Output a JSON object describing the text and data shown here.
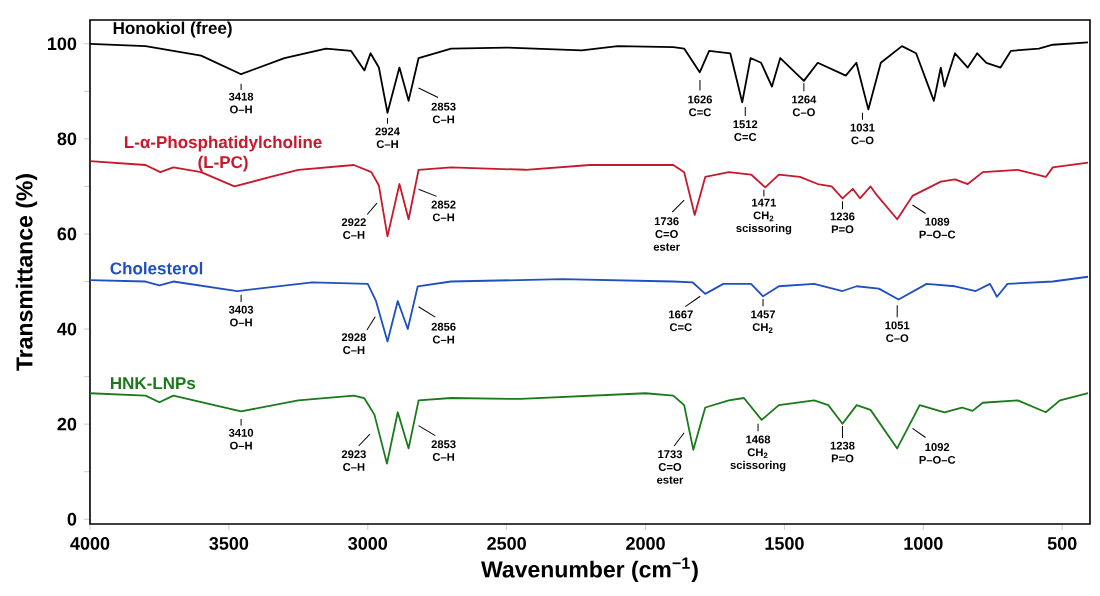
{
  "chart_data": {
    "type": "line",
    "xlabel": "Wavenumber (cm$^{−1}$)",
    "ylabel": "Transmittance (%)",
    "xlim": [
      4000,
      400
    ],
    "ylim": [
      -1,
      105
    ],
    "xticks": [
      4000,
      3500,
      3000,
      2500,
      2000,
      1500,
      1000,
      500
    ],
    "yticks": [
      0,
      {
        "value": 10,
        "label": null
      },
      20,
      {
        "value": 30,
        "label": null
      },
      40,
      {
        "value": 50,
        "label": null
      },
      60,
      {
        "value": 70,
        "label": null
      },
      80,
      {
        "value": 90,
        "label": null
      },
      100
    ],
    "grid": false,
    "legend": false,
    "marker": "none",
    "line_style": "solid",
    "series": [
      {
        "name": "Honokiol (free)",
        "color": "#000000",
        "x": [
          4000,
          3800,
          3600,
          3456,
          3300,
          3150,
          3060,
          3012,
          2990,
          2960,
          2929,
          2886,
          2853,
          2817,
          2700,
          2500,
          2230,
          2100,
          1900,
          1861,
          1805,
          1771,
          1695,
          1652,
          1622,
          1584,
          1545,
          1515,
          1430,
          1380,
          1279,
          1241,
          1198,
          1153,
          1077,
          1026,
          962,
          937,
          924,
          886,
          840,
          806,
          773,
          722,
          685,
          584,
          534,
          407
        ],
        "values": [
          100,
          99.5,
          97.5,
          93.6,
          97,
          99,
          98.5,
          94.4,
          98,
          95,
          85.5,
          95,
          88,
          97,
          99,
          99.2,
          98.6,
          99.5,
          99.3,
          99,
          94,
          98.5,
          98,
          87.7,
          97,
          96,
          91,
          97,
          92.2,
          96,
          93.3,
          96,
          86.2,
          96,
          99.5,
          98,
          88,
          95,
          91,
          98,
          95,
          98,
          96,
          95,
          98.5,
          99,
          99.8,
          100.3
        ]
      },
      {
        "name": "L-α-Phosphatidylcholine (L-PC)",
        "color": "#c8182c",
        "x": [
          4000,
          3800,
          3747,
          3700,
          3600,
          3480,
          3350,
          3250,
          3050,
          2987,
          2960,
          2929,
          2886,
          2853,
          2817,
          2700,
          2432,
          2200,
          1900,
          1861,
          1823,
          1785,
          1700,
          1620,
          1569,
          1520,
          1444,
          1380,
          1330,
          1291,
          1254,
          1228,
          1190,
          1165,
          1094,
          1039,
          937,
          886,
          840,
          786,
          660,
          559,
          534,
          407
        ],
        "values": [
          75.3,
          74.5,
          73,
          74,
          73,
          70,
          72,
          73.5,
          74.5,
          73,
          70.2,
          59.5,
          70.5,
          63.1,
          73.5,
          74,
          73.5,
          74.5,
          74.5,
          73,
          64,
          72,
          73,
          72.5,
          69.8,
          72.5,
          72,
          70.5,
          70,
          67.5,
          69.5,
          67.5,
          70,
          68,
          63.1,
          68,
          71,
          71.5,
          70.5,
          73,
          73.5,
          72,
          74,
          75
        ]
      },
      {
        "name": "Cholesterol",
        "color": "#1f4fc0",
        "x": [
          4000,
          3800,
          3750,
          3700,
          3470,
          3200,
          3000,
          2971,
          2929,
          2892,
          2856,
          2820,
          2700,
          2300,
          1900,
          1830,
          1785,
          1720,
          1620,
          1577,
          1520,
          1393,
          1291,
          1240,
          1160,
          1089,
          988,
          886,
          811,
          760,
          735,
          697,
          534,
          407
        ],
        "values": [
          50.3,
          50,
          49.2,
          50,
          48,
          49.8,
          49.5,
          46,
          37.4,
          45.9,
          40,
          49,
          50,
          50.5,
          50,
          49.8,
          47.4,
          49.5,
          49.5,
          46.9,
          49,
          49.5,
          48,
          49,
          48.5,
          46.2,
          49.5,
          49,
          48,
          49.5,
          46.8,
          49.5,
          50,
          51
        ]
      },
      {
        "name": "HNK-LNPs",
        "color": "#1a7a1a",
        "x": [
          4000,
          3800,
          3750,
          3700,
          3456,
          3250,
          3050,
          3013,
          2976,
          2931,
          2892,
          2853,
          2817,
          2700,
          2450,
          2000,
          1900,
          1861,
          1828,
          1785,
          1700,
          1646,
          1582,
          1520,
          1393,
          1342,
          1291,
          1240,
          1190,
          1094,
          1013,
          924,
          861,
          823,
          786,
          660,
          559,
          508,
          407
        ],
        "values": [
          26.5,
          26,
          24.6,
          26,
          22.7,
          25,
          26,
          25.5,
          22,
          11.7,
          22.5,
          14.9,
          25,
          25.5,
          25.3,
          26.5,
          26,
          24,
          14.6,
          23.5,
          25,
          25.5,
          20.9,
          24,
          25,
          24,
          20.1,
          24,
          23,
          14.9,
          24,
          22.5,
          23.5,
          22.8,
          24.5,
          25,
          22.5,
          25,
          26.5
        ]
      }
    ],
    "annotations": [
      {
        "text": "3418 O–H",
        "x": 3456,
        "y": 93.6
      },
      {
        "text": "2924 C–H",
        "x": 2929,
        "y": 85.5
      },
      {
        "text": "2853 C–H",
        "x": 2853,
        "y": 88
      },
      {
        "text": "1626 C=C",
        "x": 1805,
        "y": 94
      },
      {
        "text": "1512 C=C",
        "x": 1652,
        "y": 87.7
      },
      {
        "text": "1264 C–O",
        "x": 1430,
        "y": 92.2
      },
      {
        "text": "1031 C–O",
        "x": 1198,
        "y": 86.2
      },
      {
        "text": "2922 C–H",
        "x": 2929,
        "y": 59.5
      },
      {
        "text": "2852 C–H",
        "x": 2853,
        "y": 63.1
      },
      {
        "text": "1736 C=O ester",
        "x": 1823,
        "y": 64
      },
      {
        "text": "1471 CH$_{2}$ scissoring",
        "x": 1569,
        "y": 69.8
      },
      {
        "text": "1236 P=O",
        "x": 1291,
        "y": 67.5
      },
      {
        "text": "1089 P–O–C",
        "x": 1094,
        "y": 63.1
      },
      {
        "text": "3403 O–H",
        "x": 3470,
        "y": 48
      },
      {
        "text": "2928 C–H",
        "x": 2929,
        "y": 37.4
      },
      {
        "text": "2856 C–H",
        "x": 2856,
        "y": 40
      },
      {
        "text": "1667 C=C",
        "x": 1785,
        "y": 47.4
      },
      {
        "text": "1457 CH$_{2}$",
        "x": 1577,
        "y": 46.9
      },
      {
        "text": "1051 C–O",
        "x": 1089,
        "y": 46.2
      },
      {
        "text": "3410 O–H",
        "x": 3456,
        "y": 22.7
      },
      {
        "text": "2923 C–H",
        "x": 2931,
        "y": 11.7
      },
      {
        "text": "2853 C–H",
        "x": 2853,
        "y": 14.9
      },
      {
        "text": "1733 C=O ester",
        "x": 1828,
        "y": 14.6
      },
      {
        "text": "1468 CH$_{2}$ scissoring",
        "x": 1582,
        "y": 20.9
      },
      {
        "text": "1238 P=O",
        "x": 1291,
        "y": 20.1
      },
      {
        "text": "1092 P–O–C",
        "x": 1094,
        "y": 14.9
      }
    ]
  }
}
